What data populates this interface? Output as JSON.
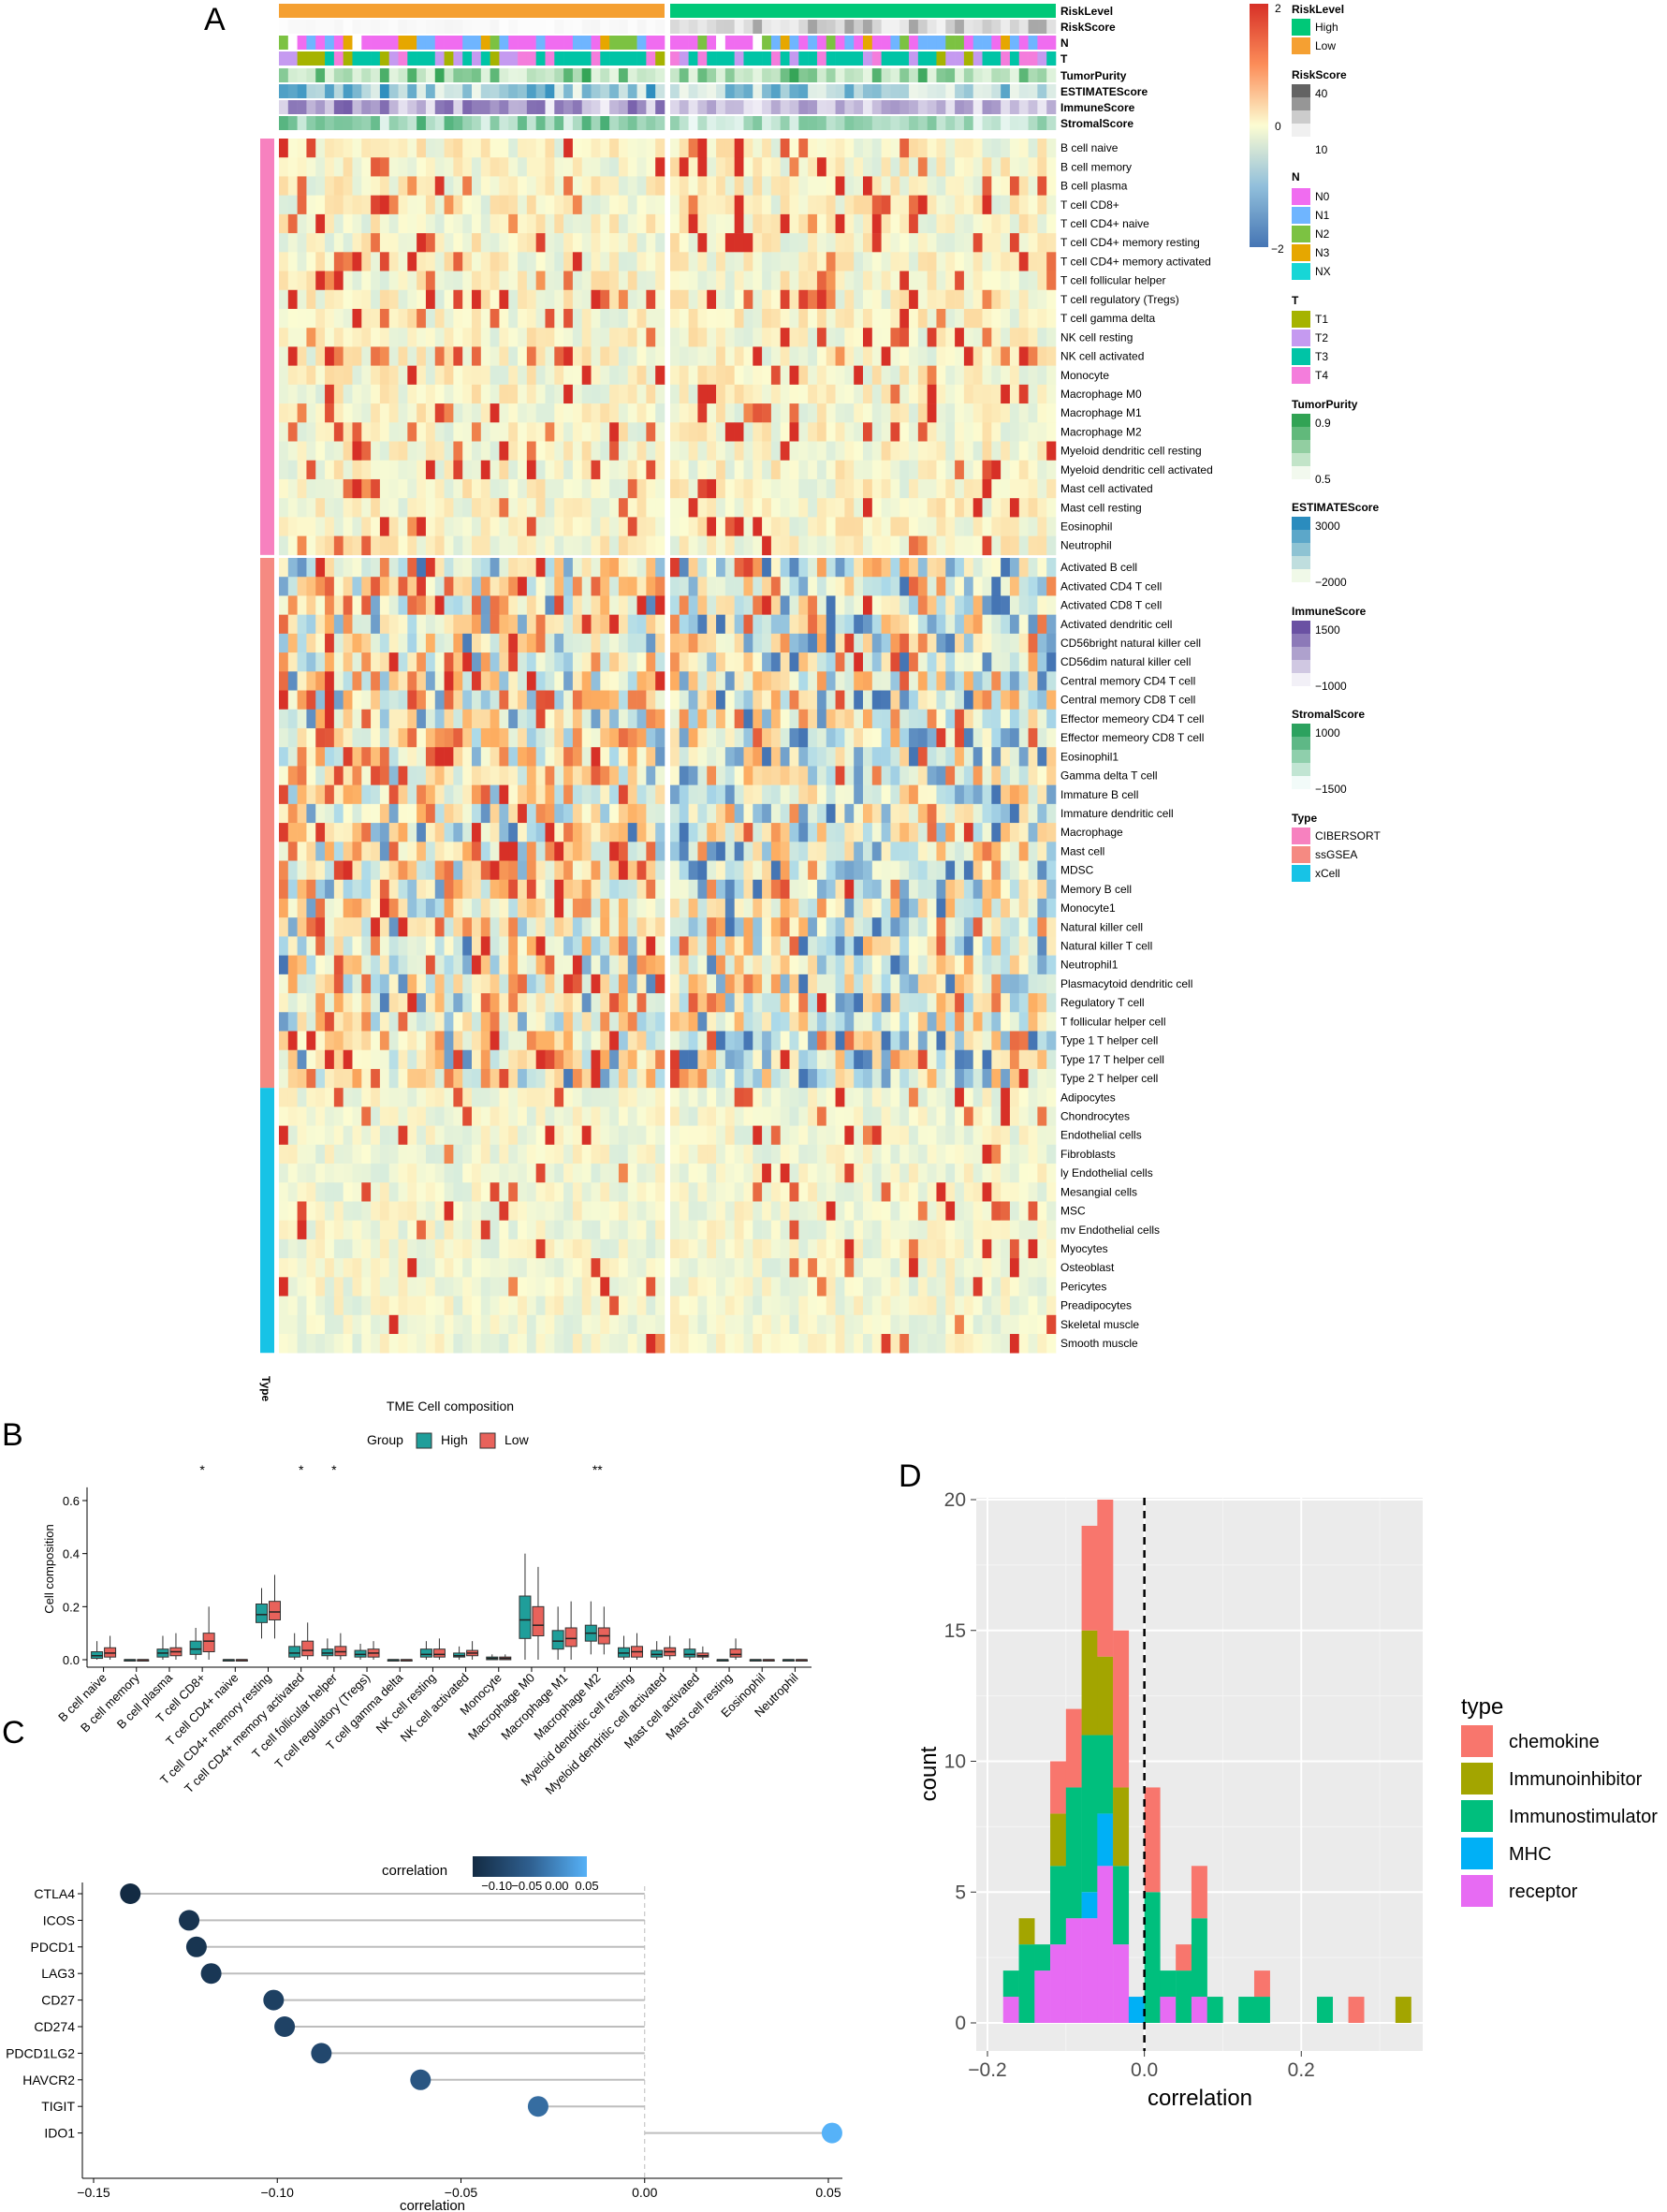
{
  "colors": {
    "high": "#00c878",
    "low": "#f5a032",
    "cibersort": "#f781bf",
    "ssgsea": "#f58a82",
    "xcell": "#17c3e6",
    "heat_neg": "#4575b4",
    "heat_mid": "#fcfcd2",
    "heat_pos": "#d73027",
    "box_high": "#1f9e9a",
    "box_low": "#e8625b",
    "chemokine": "#f8766d",
    "immunoinhibitor": "#a3a500",
    "immunostimulator": "#00bf7d",
    "mhc": "#00b0f6",
    "receptor": "#e76bf3"
  },
  "panelA": {
    "panel_label": "A",
    "annotation_rows": [
      "RiskLevel",
      "RiskScore",
      "N",
      "T",
      "TumorPurity",
      "ESTIMATEScore",
      "ImmuneScore",
      "StromalScore"
    ],
    "type_axis_label": "Type",
    "cell_rows": [
      "B cell naive",
      "B cell memory",
      "B cell plasma",
      "T cell CD8+",
      "T cell CD4+ naive",
      "T cell CD4+ memory resting",
      "T cell CD4+ memory activated",
      "T cell follicular helper",
      "T cell regulatory (Tregs)",
      "T cell gamma delta",
      "NK cell resting",
      "NK cell activated",
      "Monocyte",
      "Macrophage M0",
      "Macrophage M1",
      "Macrophage M2",
      "Myeloid dendritic cell resting",
      "Myeloid dendritic cell activated",
      "Mast cell activated",
      "Mast cell resting",
      "Eosinophil",
      "Neutrophil",
      "Activated B cell",
      "Activated CD4 T cell",
      "Activated CD8 T cell",
      "Activated dendritic cell",
      "CD56bright natural killer cell",
      "CD56dim natural killer cell",
      "Central memory CD4 T cell",
      "Central memory CD8 T cell",
      "Effector memeory CD4 T cell",
      "Effector memeory CD8 T cell",
      "Eosinophil1",
      "Gamma delta T cell",
      "Immature  B cell",
      "Immature dendritic cell",
      "Macrophage",
      "Mast cell",
      "MDSC",
      "Memory B cell",
      "Monocyte1",
      "Natural killer cell",
      "Natural killer T cell",
      "Neutrophil1",
      "Plasmacytoid dendritic cell",
      "Regulatory T cell",
      "T follicular helper cell",
      "Type 1 T helper cell",
      "Type 17 T helper cell",
      "Type 2 T helper cell",
      "Adipocytes",
      "Chondrocytes",
      "Endothelial cells",
      "Fibroblasts",
      "ly Endothelial cells",
      "Mesangial cells",
      "MSC",
      "mv Endothelial cells",
      "Myocytes",
      "Osteoblast",
      "Pericytes",
      "Preadipocytes",
      "Skeletal muscle",
      "Smooth muscle"
    ],
    "legend": {
      "scale_ticks": [
        "2",
        "0",
        "−2"
      ],
      "risklevel": {
        "title": "RiskLevel",
        "items": [
          "High",
          "Low"
        ]
      },
      "riskscore": {
        "title": "RiskScore",
        "ticks": [
          "40",
          "10"
        ]
      },
      "n": {
        "title": "N",
        "items": [
          "N0",
          "N1",
          "N2",
          "N3",
          "NX"
        ],
        "colors": [
          "#f06cf0",
          "#6fb5ff",
          "#7cc242",
          "#e6a700",
          "#17d6d6"
        ]
      },
      "t": {
        "title": "T",
        "items": [
          "T1",
          "T2",
          "T3",
          "T4"
        ],
        "colors": [
          "#a6b300",
          "#c59af0",
          "#00c4a6",
          "#f47ddc"
        ]
      },
      "tumorpurity": {
        "title": "TumorPurity",
        "ticks": [
          "0.9",
          "0.5"
        ]
      },
      "estimate": {
        "title": "ESTIMATEScore",
        "ticks": [
          "3000",
          "−2000"
        ]
      },
      "immune": {
        "title": "ImmuneScore",
        "ticks": [
          "1500",
          "−1000"
        ]
      },
      "stromal": {
        "title": "StromalScore",
        "ticks": [
          "1000",
          "−1500"
        ]
      },
      "type": {
        "title": "Type",
        "items": [
          "CIBERSORT",
          "ssGSEA",
          "xCell"
        ]
      }
    }
  },
  "panelB": {
    "panel_label": "B",
    "title": "TME Cell composition",
    "group_label": "Group",
    "groups": [
      "High",
      "Low"
    ],
    "ylabel": "Cell composition",
    "yticks": [
      "0.0",
      "0.2",
      "0.4",
      "0.6"
    ],
    "significance": {
      "3": "*",
      "6": "*",
      "7": "*",
      "15": "**"
    }
  },
  "panelC": {
    "panel_label": "C",
    "legend_title": "correlation",
    "legend_ticks": [
      "−0.10",
      "−0.05",
      "0.00",
      "0.05"
    ],
    "xlabel": "correlation",
    "xticks": [
      "−0.15",
      "−0.10",
      "−0.05",
      "0.00",
      "0.05"
    ]
  },
  "panelD": {
    "panel_label": "D",
    "xlabel": "correlation",
    "ylabel": "count",
    "xticks": [
      "−0.2",
      "0.0",
      "0.2"
    ],
    "yticks": [
      "0",
      "5",
      "10",
      "15",
      "20"
    ],
    "legend_title": "type",
    "legend_items": [
      "chemokine",
      "Immunoinhibitor",
      "Immunostimulator",
      "MHC",
      "receptor"
    ]
  },
  "chart_data": [
    {
      "type": "heatmap",
      "panel": "A",
      "rows": 64,
      "groups": [
        "CIBERSORT",
        "ssGSEA",
        "xCell"
      ],
      "group_sizes": [
        22,
        28,
        14
      ],
      "columns": [
        "High risk samples",
        "Low risk samples"
      ],
      "color_scale": [
        -2,
        0,
        2
      ]
    },
    {
      "type": "box",
      "panel": "B",
      "categories": [
        "B cell naive",
        "B cell memory",
        "B cell plasma",
        "T cell CD8+",
        "T cell CD4+ naive",
        "T cell CD4+ memory resting",
        "T cell CD4+ memory activated",
        "T cell follicular helper",
        "T cell regulatory (Tregs)",
        "T cell gamma delta",
        "NK cell resting",
        "NK cell activated",
        "Monocyte",
        "Macrophage M0",
        "Macrophage M1",
        "Macrophage M2",
        "Myeloid dendritic cell resting",
        "Myeloid dendritic cell activated",
        "Mast cell activated",
        "Mast cell resting",
        "Eosinophil",
        "Neutrophil"
      ],
      "ylim": [
        0,
        0.65
      ],
      "series": [
        {
          "name": "High",
          "stats": [
            [
              0,
              0.005,
              0.015,
              0.03,
              0.07
            ],
            [
              0,
              0,
              0,
              0,
              0
            ],
            [
              0,
              0.01,
              0.025,
              0.04,
              0.09
            ],
            [
              0,
              0.02,
              0.04,
              0.07,
              0.12
            ],
            [
              0,
              0,
              0,
              0,
              0
            ],
            [
              0.08,
              0.14,
              0.17,
              0.21,
              0.27
            ],
            [
              0,
              0.01,
              0.025,
              0.05,
              0.1
            ],
            [
              0,
              0.015,
              0.025,
              0.04,
              0.08
            ],
            [
              0,
              0.01,
              0.02,
              0.035,
              0.06
            ],
            [
              0,
              0,
              0,
              0,
              0
            ],
            [
              0,
              0.01,
              0.02,
              0.04,
              0.07
            ],
            [
              0,
              0.01,
              0.015,
              0.025,
              0.05
            ],
            [
              0,
              0,
              0.005,
              0.01,
              0.02
            ],
            [
              0,
              0.08,
              0.15,
              0.24,
              0.4
            ],
            [
              0,
              0.04,
              0.07,
              0.11,
              0.2
            ],
            [
              0.02,
              0.07,
              0.1,
              0.13,
              0.22
            ],
            [
              0,
              0.01,
              0.025,
              0.045,
              0.09
            ],
            [
              0,
              0.01,
              0.02,
              0.035,
              0.07
            ],
            [
              0,
              0.01,
              0.02,
              0.04,
              0.08
            ],
            [
              0,
              0,
              0,
              0,
              0
            ],
            [
              0,
              0,
              0,
              0,
              0
            ],
            [
              0,
              0,
              0,
              0,
              0
            ]
          ]
        },
        {
          "name": "Low",
          "stats": [
            [
              0,
              0.01,
              0.025,
              0.045,
              0.09
            ],
            [
              0,
              0,
              0,
              0,
              0
            ],
            [
              0,
              0.015,
              0.03,
              0.045,
              0.1
            ],
            [
              0,
              0.03,
              0.07,
              0.1,
              0.2
            ],
            [
              0,
              0,
              0,
              0,
              0
            ],
            [
              0.08,
              0.15,
              0.18,
              0.22,
              0.32
            ],
            [
              0,
              0.015,
              0.035,
              0.07,
              0.14
            ],
            [
              0,
              0.015,
              0.03,
              0.05,
              0.1
            ],
            [
              0,
              0.01,
              0.025,
              0.04,
              0.07
            ],
            [
              0,
              0,
              0,
              0,
              0
            ],
            [
              0,
              0.01,
              0.02,
              0.04,
              0.08
            ],
            [
              0,
              0.015,
              0.025,
              0.035,
              0.07
            ],
            [
              0,
              0,
              0.005,
              0.01,
              0.02
            ],
            [
              0,
              0.09,
              0.13,
              0.2,
              0.35
            ],
            [
              0,
              0.05,
              0.08,
              0.12,
              0.22
            ],
            [
              0.02,
              0.06,
              0.09,
              0.12,
              0.2
            ],
            [
              0,
              0.01,
              0.03,
              0.05,
              0.1
            ],
            [
              0,
              0.015,
              0.03,
              0.045,
              0.09
            ],
            [
              0,
              0.01,
              0.015,
              0.025,
              0.05
            ],
            [
              0,
              0.01,
              0.02,
              0.04,
              0.08
            ],
            [
              0,
              0,
              0,
              0,
              0
            ],
            [
              0,
              0,
              0,
              0,
              0
            ]
          ]
        }
      ]
    },
    {
      "type": "lollipop",
      "panel": "C",
      "categories": [
        "CTLA4",
        "ICOS",
        "PDCD1",
        "LAG3",
        "CD27",
        "CD274",
        "PDCD1LG2",
        "HAVCR2",
        "TIGIT",
        "IDO1"
      ],
      "values": [
        -0.14,
        -0.124,
        -0.122,
        -0.118,
        -0.101,
        -0.098,
        -0.088,
        -0.061,
        -0.029,
        0.051
      ],
      "xlim": [
        -0.15,
        0.06
      ]
    },
    {
      "type": "bar",
      "panel": "D",
      "stacked": true,
      "bin_width": 0.02,
      "bin_starts": [
        -0.18,
        -0.16,
        -0.14,
        -0.12,
        -0.1,
        -0.08,
        -0.06,
        -0.04,
        -0.02,
        0.0,
        0.02,
        0.04,
        0.06,
        0.08,
        0.1,
        0.12,
        0.14,
        0.16,
        0.18,
        0.2,
        0.22,
        0.24,
        0.26,
        0.28,
        0.3,
        0.32
      ],
      "series": [
        {
          "name": "receptor",
          "values": [
            1,
            0,
            2,
            3,
            4,
            4,
            6,
            3,
            0,
            0,
            1,
            0,
            1,
            0,
            0,
            0,
            0,
            0,
            0,
            0,
            0,
            0,
            0,
            0,
            0,
            0
          ]
        },
        {
          "name": "MHC",
          "values": [
            0,
            0,
            0,
            0,
            0,
            1,
            2,
            0,
            1,
            0,
            0,
            0,
            0,
            0,
            0,
            0,
            0,
            0,
            0,
            0,
            0,
            0,
            0,
            0,
            0,
            0
          ]
        },
        {
          "name": "Immunostimulator",
          "values": [
            1,
            3,
            1,
            3,
            5,
            6,
            3,
            3,
            0,
            5,
            1,
            2,
            3,
            1,
            0,
            1,
            1,
            0,
            0,
            0,
            1,
            0,
            0,
            0,
            0,
            0
          ]
        },
        {
          "name": "Immunoinhibitor",
          "values": [
            0,
            1,
            0,
            2,
            0,
            4,
            3,
            3,
            0,
            0,
            0,
            0,
            0,
            0,
            0,
            0,
            0,
            0,
            0,
            0,
            0,
            0,
            0,
            0,
            0,
            1
          ]
        },
        {
          "name": "chemokine",
          "values": [
            0,
            0,
            0,
            2,
            3,
            4,
            6,
            6,
            0,
            4,
            0,
            1,
            2,
            0,
            0,
            0,
            1,
            0,
            0,
            0,
            0,
            0,
            1,
            0,
            0,
            0
          ]
        }
      ],
      "xlim": [
        -0.2,
        0.35
      ],
      "ylim": [
        0,
        21
      ]
    }
  ]
}
